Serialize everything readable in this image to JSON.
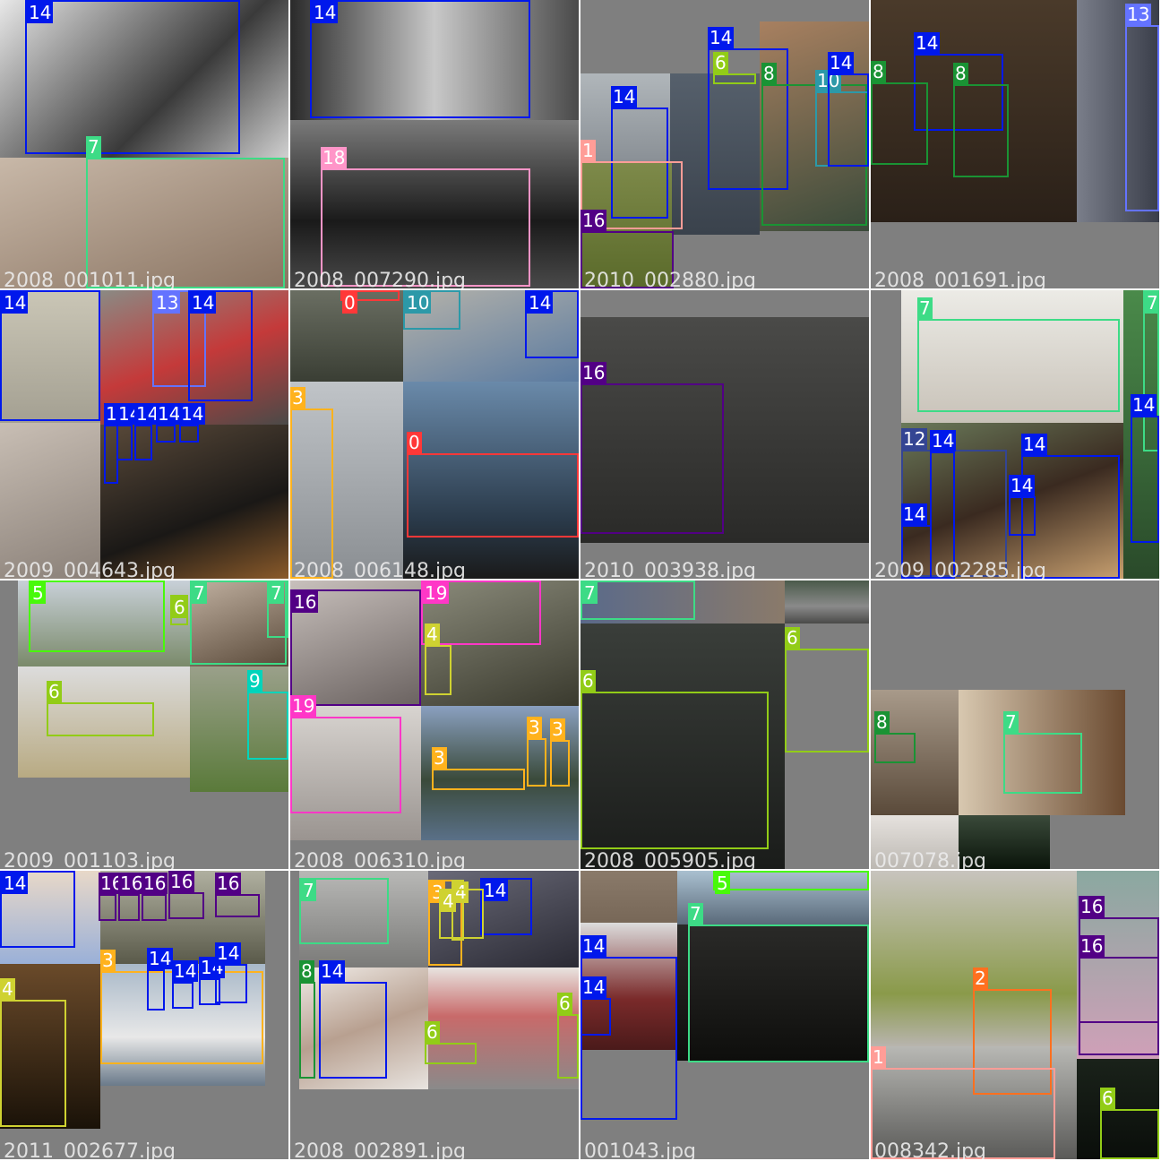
{
  "title": "",
  "class_colors": {
    "0": "#ff3838",
    "1": "#ff9d97",
    "2": "#ff701f",
    "3": "#ffb21d",
    "4": "#cfd231",
    "5": "#48f90a",
    "6": "#92cc17",
    "7": "#3ddb86",
    "8": "#1a9334",
    "9": "#00d4bb",
    "10": "#2c99a8",
    "11": "#00c2ff",
    "12": "#344593",
    "13": "#6473ff",
    "14": "#0018ec",
    "15": "#8438ff",
    "16": "#520085",
    "17": "#cb38ff",
    "18": "#ff95c8",
    "19": "#ff37c7"
  },
  "tiles": [
    {
      "filename": "2008_001011.jpg",
      "photos": [
        {
          "kind": "face-woman",
          "bg": "#c9c9c9"
        },
        {
          "kind": "cat",
          "bg": "#a89482"
        }
      ],
      "boxes": [
        {
          "label": "14"
        },
        {
          "label": "7"
        }
      ]
    },
    {
      "filename": "2008_007290.jpg",
      "photos": [
        {
          "kind": "face-man",
          "bg": "#8a8a8a"
        },
        {
          "kind": "train",
          "bg": "#3a3a3a"
        }
      ],
      "boxes": [
        {
          "label": "14"
        },
        {
          "label": "18"
        }
      ]
    },
    {
      "filename": "2010_002880.jpg",
      "photos": [
        {
          "kind": "kid",
          "bg": "#9aa0a6"
        },
        {
          "kind": "wall",
          "bg": "#4c5661"
        },
        {
          "kind": "table",
          "bg": "#6a5a4a"
        },
        {
          "kind": "grass",
          "bg": "#6e7a3a"
        }
      ],
      "boxes": [
        {
          "label": "6"
        },
        {
          "label": "14"
        },
        {
          "label": "14"
        },
        {
          "label": "1"
        },
        {
          "label": "16"
        },
        {
          "label": "8"
        },
        {
          "label": "10"
        },
        {
          "label": "14"
        }
      ]
    },
    {
      "filename": "2008_001691.jpg",
      "photos": [
        {
          "kind": "room",
          "bg": "#3a3024"
        },
        {
          "kind": "moto",
          "bg": "#5a5e6a"
        }
      ],
      "boxes": [
        {
          "label": "14"
        },
        {
          "label": "8"
        },
        {
          "label": "8"
        },
        {
          "label": "13"
        }
      ]
    },
    {
      "filename": "2009_004643.jpg",
      "photos": [
        {
          "kind": "baby",
          "bg": "#b8b4a4"
        },
        {
          "kind": "moto-red",
          "bg": "#6a6c64"
        },
        {
          "kind": "hand",
          "bg": "#b4aaa0"
        },
        {
          "kind": "moto-black",
          "bg": "#2e2a26"
        }
      ],
      "boxes": [
        {
          "label": "14"
        },
        {
          "label": "13"
        },
        {
          "label": "14"
        },
        {
          "label": "14"
        },
        {
          "label": "14"
        },
        {
          "label": "14"
        },
        {
          "label": "14"
        },
        {
          "label": "14"
        }
      ]
    },
    {
      "filename": "2008_006148.jpg",
      "photos": [
        {
          "kind": "field",
          "bg": "#505448"
        },
        {
          "kind": "items",
          "bg": "#8a8a84"
        },
        {
          "kind": "mast",
          "bg": "#a4a8ac"
        },
        {
          "kind": "plane",
          "bg": "#4a6a8a"
        }
      ],
      "boxes": [
        {
          "label": "0"
        },
        {
          "label": "10"
        },
        {
          "label": "14"
        },
        {
          "label": "3"
        },
        {
          "label": "0"
        }
      ]
    },
    {
      "filename": "2010_003938.jpg",
      "photos": [
        {
          "kind": "sheep",
          "bg": "#3a3a38"
        }
      ],
      "boxes": [
        {
          "label": "16"
        }
      ]
    },
    {
      "filename": "2009_002285.jpg",
      "photos": [
        {
          "kind": "cat-bed",
          "bg": "#dcd8d0"
        },
        {
          "kind": "horse",
          "bg": "#5a6a4a"
        },
        {
          "kind": "side",
          "bg": "#3a6a3a"
        }
      ],
      "boxes": [
        {
          "label": "7"
        },
        {
          "label": "7"
        },
        {
          "label": "12"
        },
        {
          "label": "14"
        },
        {
          "label": "14"
        },
        {
          "label": "14"
        },
        {
          "label": "14"
        },
        {
          "label": "14"
        }
      ]
    },
    {
      "filename": "2009_001103.jpg",
      "photos": [
        {
          "kind": "bus",
          "bg": "#a8b0b8"
        },
        {
          "kind": "kitten",
          "bg": "#8a7a6a"
        },
        {
          "kind": "car-field",
          "bg": "#b0aa90"
        },
        {
          "kind": "cow",
          "bg": "#6a8a4a"
        }
      ],
      "boxes": [
        {
          "label": "5"
        },
        {
          "label": "6"
        },
        {
          "label": "7"
        },
        {
          "label": "7"
        },
        {
          "label": "6"
        },
        {
          "label": "9"
        }
      ]
    },
    {
      "filename": "2008_006310.jpg",
      "photos": [
        {
          "kind": "lamb",
          "bg": "#8a8280"
        },
        {
          "kind": "desk",
          "bg": "#5a5844"
        },
        {
          "kind": "tv",
          "bg": "#b8b4b0"
        },
        {
          "kind": "lake",
          "bg": "#5a6a7a"
        }
      ],
      "boxes": [
        {
          "label": "16"
        },
        {
          "label": "19"
        },
        {
          "label": "4"
        },
        {
          "label": "19"
        },
        {
          "label": "3"
        },
        {
          "label": "3"
        },
        {
          "label": "3"
        },
        {
          "label": "3"
        }
      ]
    },
    {
      "filename": "2008_005905.jpg",
      "photos": [
        {
          "kind": "jeans",
          "bg": "#4a5a7a"
        },
        {
          "kind": "car",
          "bg": "#3a4a3a"
        },
        {
          "kind": "car2",
          "bg": "#2a2e2a"
        }
      ],
      "boxes": [
        {
          "label": "7"
        },
        {
          "label": "6"
        },
        {
          "label": "6"
        }
      ]
    },
    {
      "filename": "007078.jpg",
      "photos": [
        {
          "kind": "living",
          "bg": "#8a7a6a"
        },
        {
          "kind": "cat-door",
          "bg": "#a89480"
        },
        {
          "kind": "floor",
          "bg": "#d0ccc8"
        },
        {
          "kind": "tree",
          "bg": "#1a2a1a"
        }
      ],
      "boxes": [
        {
          "label": "8"
        },
        {
          "label": "7"
        }
      ]
    },
    {
      "filename": "2011_002677.jpg",
      "photos": [
        {
          "kind": "baby2",
          "bg": "#b8c0d8"
        },
        {
          "kind": "crowd",
          "bg": "#6a6a5a"
        },
        {
          "kind": "candle",
          "bg": "#3a2a1a"
        },
        {
          "kind": "boat",
          "bg": "#8a9aaa"
        }
      ],
      "boxes": [
        {
          "label": "14"
        },
        {
          "label": "16"
        },
        {
          "label": "16"
        },
        {
          "label": "16"
        },
        {
          "label": "16"
        },
        {
          "label": "16"
        },
        {
          "label": "3"
        },
        {
          "label": "14"
        },
        {
          "label": "14"
        },
        {
          "label": "14"
        },
        {
          "label": "14"
        },
        {
          "label": "4"
        }
      ]
    },
    {
      "filename": "2008_002891.jpg",
      "photos": [
        {
          "kind": "cat-sill",
          "bg": "#9a9a98"
        },
        {
          "kind": "people",
          "bg": "#4a4a54"
        },
        {
          "kind": "mother",
          "bg": "#d8d4d0"
        },
        {
          "kind": "truck",
          "bg": "#c8c0b8"
        }
      ],
      "boxes": [
        {
          "label": "7"
        },
        {
          "label": "3"
        },
        {
          "label": "4"
        },
        {
          "label": "14"
        },
        {
          "label": "8"
        },
        {
          "label": "14"
        },
        {
          "label": "4"
        },
        {
          "label": "6"
        },
        {
          "label": "6"
        }
      ]
    },
    {
      "filename": "001043.jpg",
      "photos": [
        {
          "kind": "shelf",
          "bg": "#6a5a4a"
        },
        {
          "kind": "bus-top",
          "bg": "#8aa0b0"
        },
        {
          "kind": "chair",
          "bg": "#7a3a3a"
        },
        {
          "kind": "black-cat",
          "bg": "#1e1e1c"
        }
      ],
      "boxes": [
        {
          "label": "5"
        },
        {
          "label": "7"
        },
        {
          "label": "14"
        },
        {
          "label": "14"
        }
      ]
    },
    {
      "filename": "008342.jpg",
      "photos": [
        {
          "kind": "bird",
          "bg": "#b8b4ae"
        },
        {
          "kind": "bike",
          "bg": "#8a8a88"
        },
        {
          "kind": "sheep-pink",
          "bg": "#a08898"
        },
        {
          "kind": "dark",
          "bg": "#141a14"
        }
      ],
      "boxes": [
        {
          "label": "2"
        },
        {
          "label": "1"
        },
        {
          "label": "16"
        },
        {
          "label": "16"
        },
        {
          "label": "6"
        }
      ]
    }
  ]
}
